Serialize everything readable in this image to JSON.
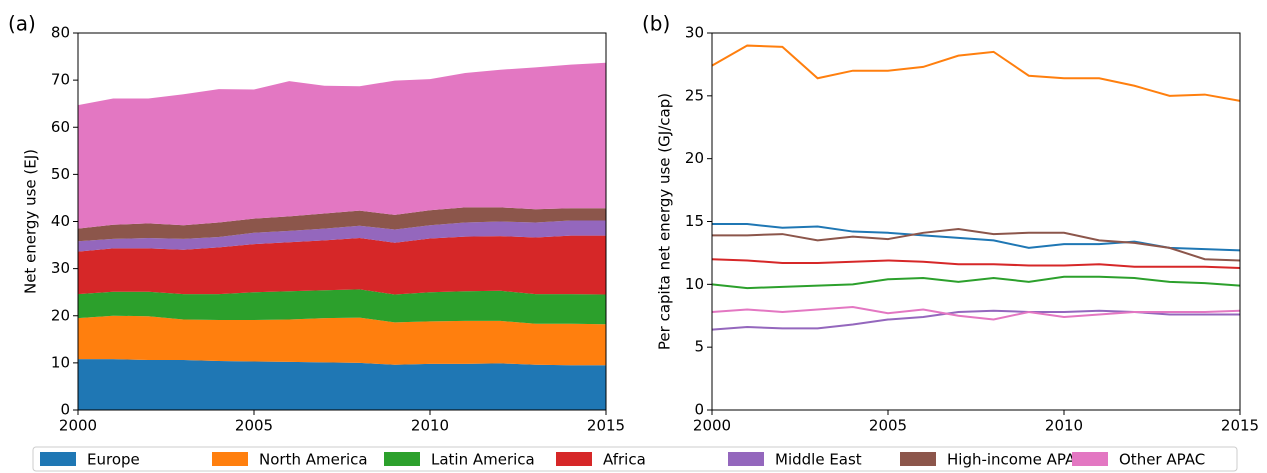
{
  "chart_data": [
    {
      "type": "area",
      "stacked": true,
      "panel_label": "(a)",
      "ylabel": "Net energy use (EJ)",
      "x": [
        2000,
        2001,
        2002,
        2003,
        2004,
        2005,
        2006,
        2007,
        2008,
        2009,
        2010,
        2011,
        2012,
        2013,
        2014,
        2015
      ],
      "xlim": [
        2000,
        2015
      ],
      "xticks": [
        2000,
        2005,
        2010,
        2015
      ],
      "ylim": [
        0,
        80
      ],
      "yticks": [
        0,
        10,
        20,
        30,
        40,
        50,
        60,
        70,
        80
      ],
      "legend": "bottom",
      "series": [
        {
          "name": "Europe",
          "color": "#1f77b4",
          "values": [
            10.8,
            10.8,
            10.6,
            10.6,
            10.4,
            10.3,
            10.2,
            10.1,
            10.0,
            9.6,
            9.8,
            9.8,
            9.9,
            9.6,
            9.5,
            9.5
          ]
        },
        {
          "name": "North America",
          "color": "#ff7f0e",
          "values": [
            8.7,
            9.2,
            9.3,
            8.6,
            8.7,
            8.8,
            9.0,
            9.4,
            9.6,
            9.0,
            9.0,
            9.1,
            9.0,
            8.7,
            8.8,
            8.7
          ]
        },
        {
          "name": "Latin America",
          "color": "#2ca02c",
          "values": [
            5.1,
            5.1,
            5.2,
            5.4,
            5.5,
            5.9,
            6.0,
            5.9,
            6.0,
            5.9,
            6.2,
            6.3,
            6.4,
            6.3,
            6.3,
            6.3
          ]
        },
        {
          "name": "Africa",
          "color": "#d62728",
          "values": [
            9.0,
            9.2,
            9.2,
            9.4,
            9.9,
            10.2,
            10.4,
            10.6,
            10.9,
            11.0,
            11.4,
            11.6,
            11.6,
            12.0,
            12.4,
            12.5
          ]
        },
        {
          "name": "Middle East",
          "color": "#9467bd",
          "values": [
            2.2,
            2.0,
            2.2,
            2.3,
            2.2,
            2.4,
            2.4,
            2.5,
            2.6,
            2.8,
            2.8,
            3.0,
            3.1,
            3.2,
            3.2,
            3.2
          ]
        },
        {
          "name": "High-income APAC",
          "color": "#8c564b",
          "values": [
            2.7,
            3.0,
            3.1,
            2.9,
            3.1,
            3.0,
            3.1,
            3.2,
            3.2,
            3.1,
            3.2,
            3.2,
            3.0,
            2.8,
            2.6,
            2.6
          ]
        },
        {
          "name": "Other APAC",
          "color": "#e377c2",
          "values": [
            26.2,
            26.8,
            26.5,
            27.8,
            28.3,
            27.4,
            28.7,
            27.1,
            26.4,
            28.5,
            27.8,
            28.5,
            29.2,
            30.1,
            30.5,
            30.9
          ]
        }
      ]
    },
    {
      "type": "line",
      "panel_label": "(b)",
      "ylabel": "Per capita net energy use (GJ/cap)",
      "x": [
        2000,
        2001,
        2002,
        2003,
        2004,
        2005,
        2006,
        2007,
        2008,
        2009,
        2010,
        2011,
        2012,
        2013,
        2014,
        2015
      ],
      "xlim": [
        2000,
        2015
      ],
      "xticks": [
        2000,
        2005,
        2010,
        2015
      ],
      "ylim": [
        0,
        30
      ],
      "yticks": [
        0,
        5,
        10,
        15,
        20,
        25,
        30
      ],
      "series": [
        {
          "color": "#1f77b4",
          "values": [
            14.8,
            14.8,
            14.5,
            14.6,
            14.2,
            14.1,
            13.9,
            13.7,
            13.5,
            12.9,
            13.2,
            13.2,
            13.4,
            12.9,
            12.8,
            12.7
          ]
        },
        {
          "color": "#ff7f0e",
          "values": [
            27.4,
            29.0,
            28.9,
            26.4,
            27.0,
            27.0,
            27.3,
            28.2,
            28.5,
            26.6,
            26.4,
            26.4,
            25.8,
            25.0,
            25.1,
            24.6
          ]
        },
        {
          "color": "#2ca02c",
          "values": [
            10.0,
            9.7,
            9.8,
            9.9,
            10.0,
            10.4,
            10.5,
            10.2,
            10.5,
            10.2,
            10.6,
            10.6,
            10.5,
            10.2,
            10.1,
            9.9
          ]
        },
        {
          "color": "#d62728",
          "values": [
            12.0,
            11.9,
            11.7,
            11.7,
            11.8,
            11.9,
            11.8,
            11.6,
            11.6,
            11.5,
            11.5,
            11.6,
            11.4,
            11.4,
            11.4,
            11.3
          ]
        },
        {
          "color": "#9467bd",
          "values": [
            6.4,
            6.6,
            6.5,
            6.5,
            6.8,
            7.2,
            7.4,
            7.8,
            7.9,
            7.8,
            7.8,
            7.9,
            7.8,
            7.6,
            7.6,
            7.6
          ]
        },
        {
          "color": "#8c564b",
          "values": [
            13.9,
            13.9,
            14.0,
            13.5,
            13.8,
            13.6,
            14.1,
            14.4,
            14.0,
            14.1,
            14.1,
            13.5,
            13.3,
            12.9,
            12.0,
            11.9
          ]
        },
        {
          "color": "#e377c2",
          "values": [
            7.8,
            8.0,
            7.8,
            8.0,
            8.2,
            7.7,
            8.0,
            7.5,
            7.2,
            7.8,
            7.4,
            7.6,
            7.8,
            7.8,
            7.8,
            7.9
          ]
        }
      ]
    }
  ]
}
